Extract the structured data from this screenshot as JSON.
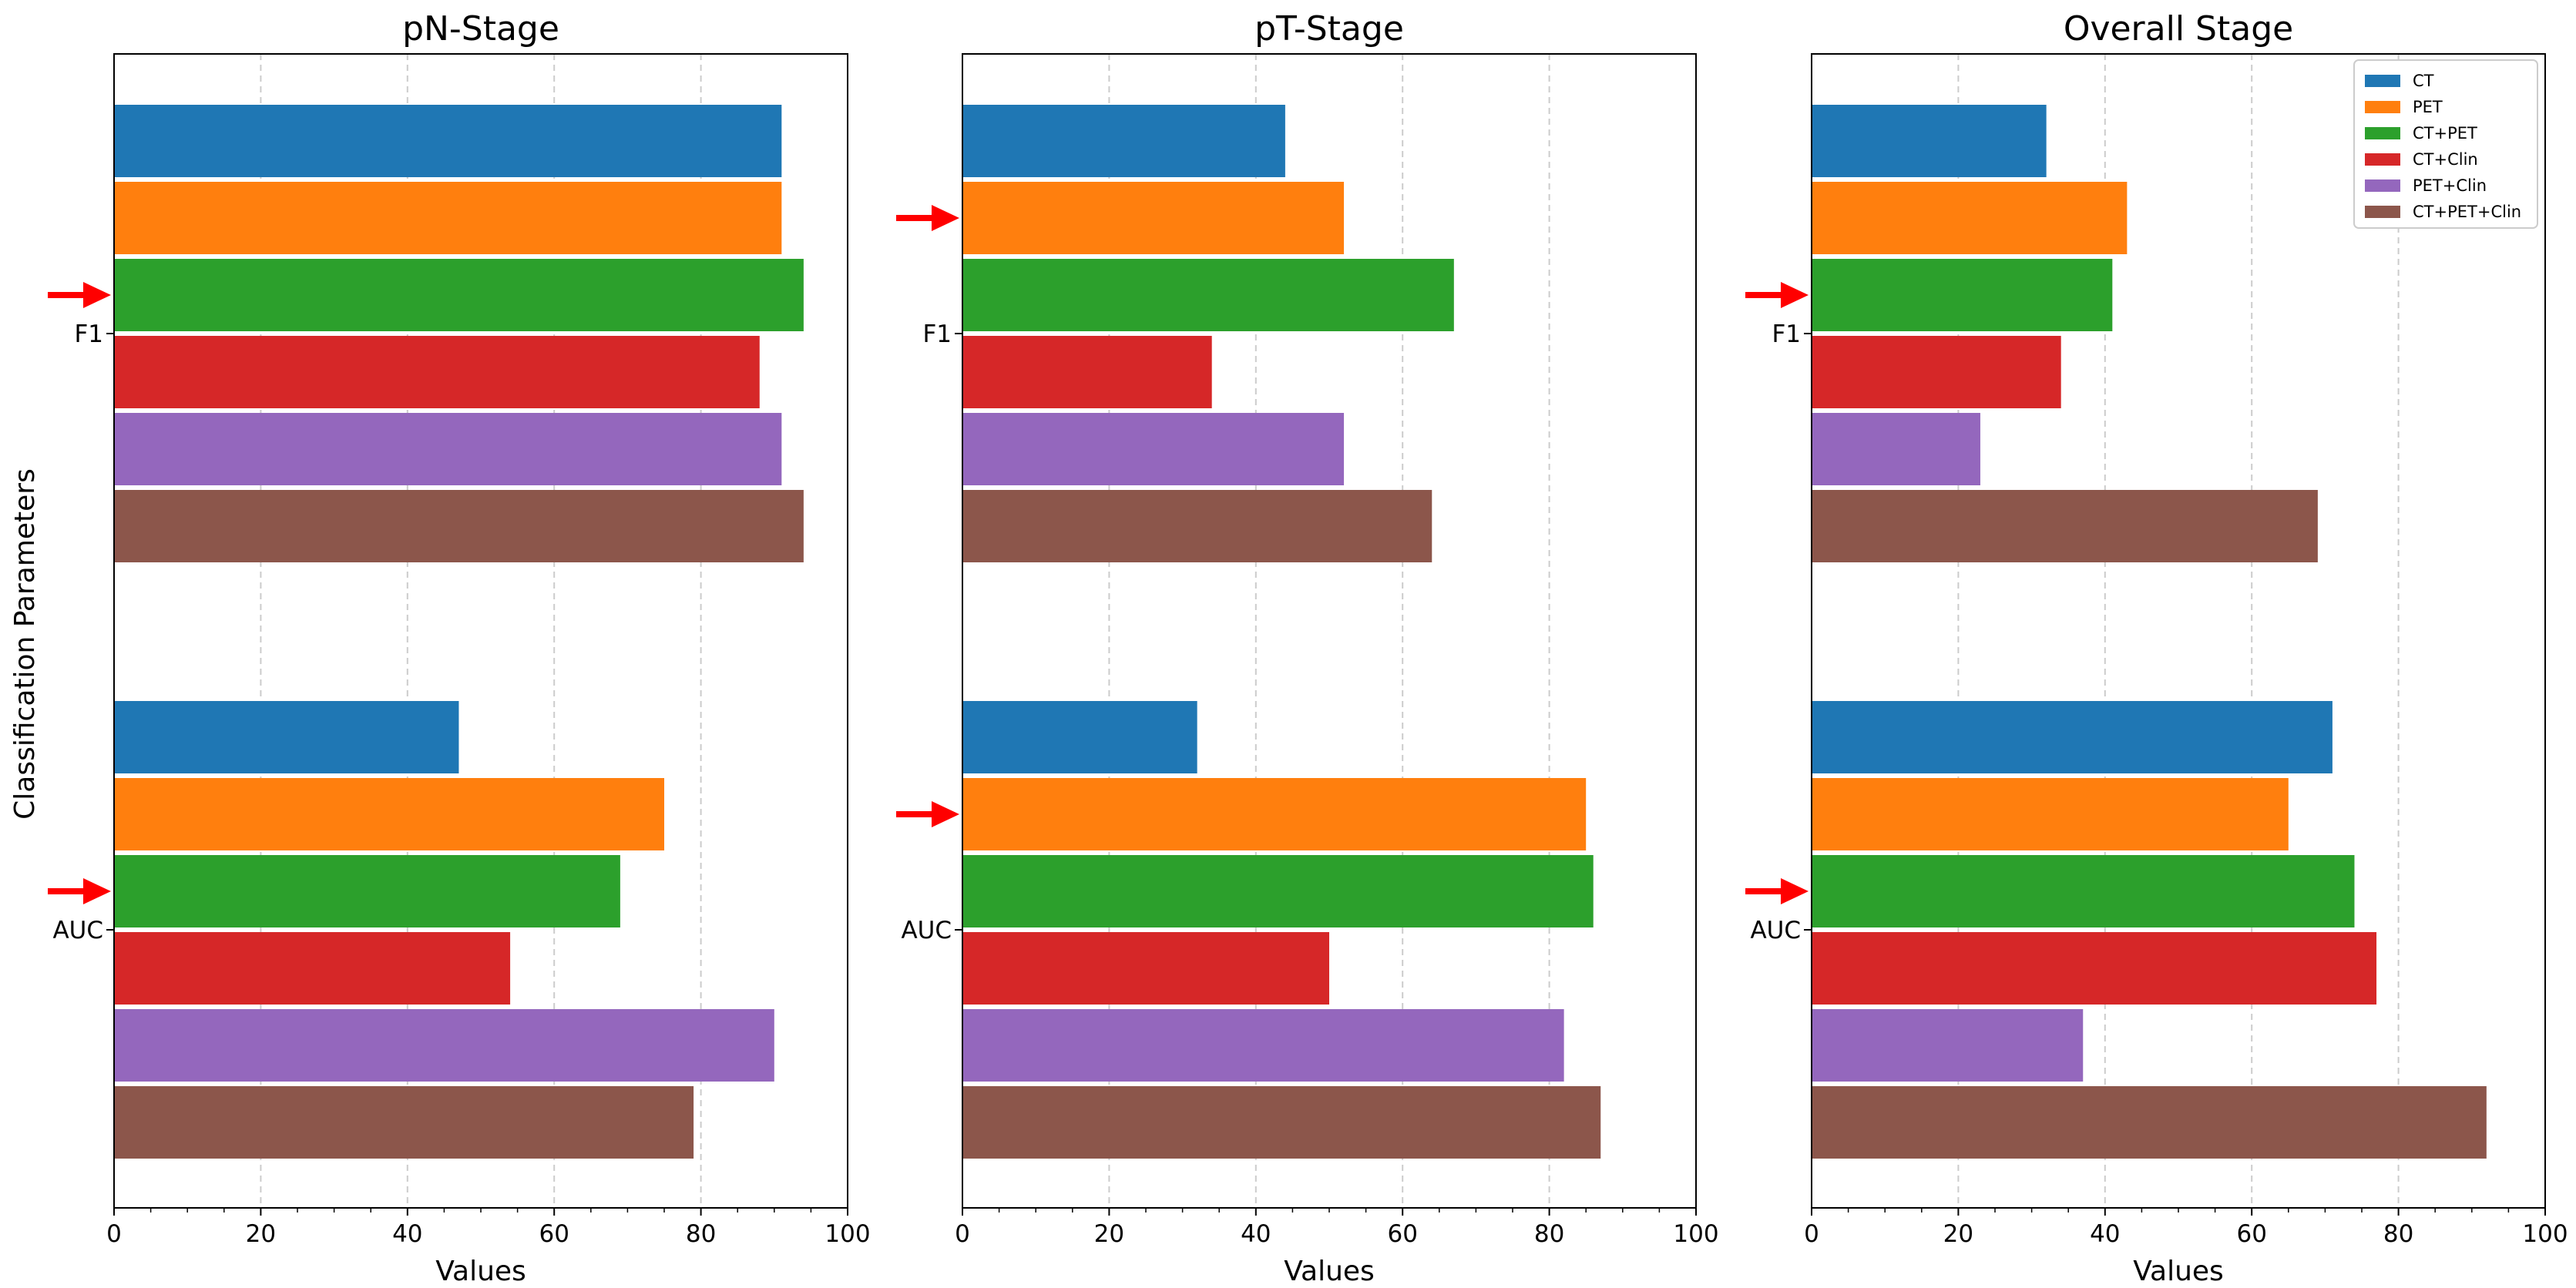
{
  "chart_data": {
    "type": "bar",
    "orientation": "horizontal",
    "ylabel": "Classification Parameters",
    "categories": [
      "F1",
      "AUC"
    ],
    "series_colors": {
      "CT": "#1f77b4",
      "PET": "#ff7f0e",
      "CT+PET": "#2ca02c",
      "CT+Clin": "#d62728",
      "PET+Clin": "#9467bd",
      "CT+PET+Clin": "#8c564b"
    },
    "arrow_color": "#ff0000",
    "legend": {
      "placement": "top-right",
      "entries": [
        "CT",
        "PET",
        "CT+PET",
        "CT+Clin",
        "PET+Clin",
        "CT+PET+Clin"
      ]
    },
    "panels": [
      {
        "title": "pN-Stage",
        "xlabel": "Values",
        "xlim": [
          0,
          100
        ],
        "xticks": [
          0,
          20,
          40,
          60,
          80,
          100
        ],
        "grid": true,
        "series": [
          {
            "name": "CT",
            "values": [
              91,
              47
            ]
          },
          {
            "name": "PET",
            "values": [
              91,
              75
            ]
          },
          {
            "name": "CT+PET",
            "values": [
              94,
              69
            ]
          },
          {
            "name": "CT+Clin",
            "values": [
              88,
              54
            ]
          },
          {
            "name": "PET+Clin",
            "values": [
              91,
              90
            ]
          },
          {
            "name": "CT+PET+Clin",
            "values": [
              94,
              79
            ]
          }
        ],
        "arrows": [
          {
            "category": "F1",
            "series": "CT+PET"
          },
          {
            "category": "AUC",
            "series": "CT+PET"
          }
        ]
      },
      {
        "title": "pT-Stage",
        "xlabel": "Values",
        "xlim": [
          0,
          100
        ],
        "xticks": [
          0,
          20,
          40,
          60,
          80,
          100
        ],
        "grid": true,
        "series": [
          {
            "name": "CT",
            "values": [
              44,
              32
            ]
          },
          {
            "name": "PET",
            "values": [
              52,
              85
            ]
          },
          {
            "name": "CT+PET",
            "values": [
              67,
              86
            ]
          },
          {
            "name": "CT+Clin",
            "values": [
              34,
              50
            ]
          },
          {
            "name": "PET+Clin",
            "values": [
              52,
              82
            ]
          },
          {
            "name": "CT+PET+Clin",
            "values": [
              64,
              87
            ]
          }
        ],
        "arrows": [
          {
            "category": "F1",
            "series": "PET"
          },
          {
            "category": "AUC",
            "series": "PET"
          }
        ]
      },
      {
        "title": "Overall Stage",
        "xlabel": "Values",
        "xlim": [
          0,
          100
        ],
        "xticks": [
          0,
          20,
          40,
          60,
          80,
          100
        ],
        "grid": true,
        "series": [
          {
            "name": "CT",
            "values": [
              32,
              71
            ]
          },
          {
            "name": "PET",
            "values": [
              43,
              65
            ]
          },
          {
            "name": "CT+PET",
            "values": [
              41,
              74
            ]
          },
          {
            "name": "CT+Clin",
            "values": [
              34,
              77
            ]
          },
          {
            "name": "PET+Clin",
            "values": [
              23,
              37
            ]
          },
          {
            "name": "CT+PET+Clin",
            "values": [
              69,
              92
            ]
          }
        ],
        "arrows": [
          {
            "category": "F1",
            "series": "CT+PET"
          },
          {
            "category": "AUC",
            "series": "CT+PET"
          }
        ]
      }
    ]
  }
}
